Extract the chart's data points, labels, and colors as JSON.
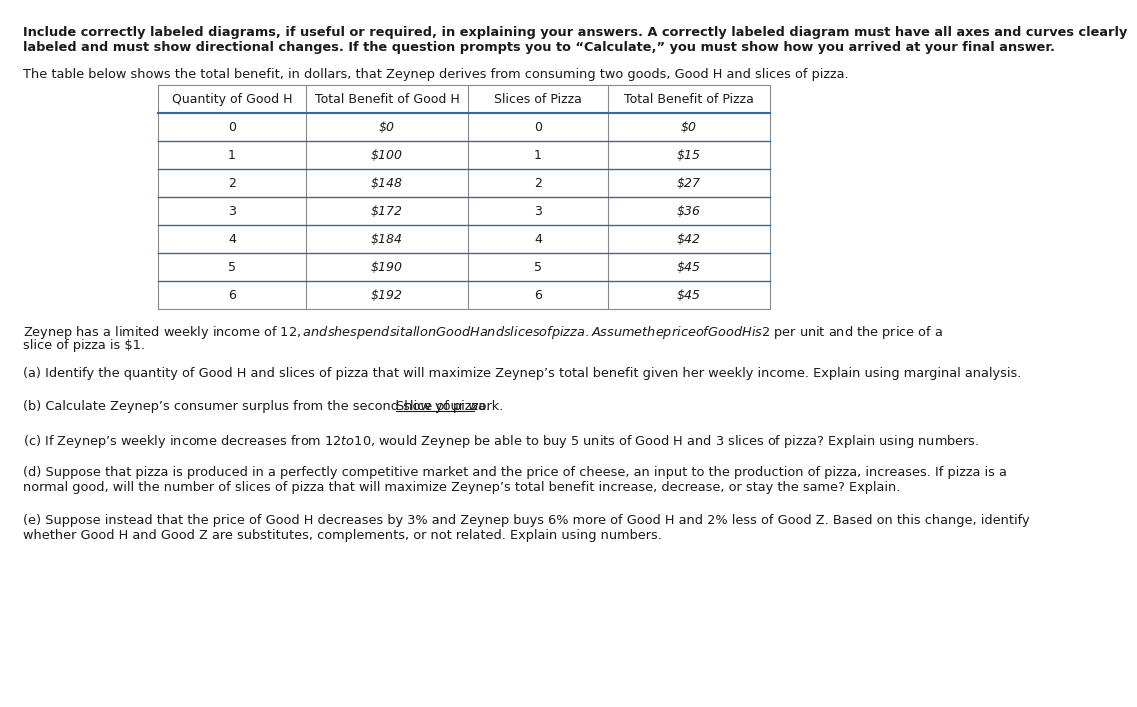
{
  "bg_color": "#ffffff",
  "text_color": "#1a1a1a",
  "table_border_color": "#888888",
  "table_header_line_color": "#2e6da4",
  "table_row_line_color": "#2e6da4",
  "font_family": "DejaVu Sans",
  "header_bold_line1": "Include correctly labeled diagrams, if useful or required, in explaining your answers. A correctly labeled diagram must have all axes and curves clearly",
  "header_bold_line2": "labeled and must show directional changes. If the question prompts you to “Calculate,” you must show how you arrived at your final answer.",
  "intro_text": "The table below shows the total benefit, in dollars, that Zeynep derives from consuming two goods, Good H and slices of pizza.",
  "table_headers": [
    "Quantity of Good H",
    "Total Benefit of Good H",
    "Slices of Pizza",
    "Total Benefit of Pizza"
  ],
  "table_col0": [
    "0",
    "1",
    "2",
    "3",
    "4",
    "5",
    "6"
  ],
  "table_col1": [
    "$0",
    "$100",
    "$148",
    "$172",
    "$184",
    "$190",
    "$192"
  ],
  "table_col2": [
    "0",
    "1",
    "2",
    "3",
    "4",
    "5",
    "6"
  ],
  "table_col3": [
    "$0",
    "$15",
    "$27",
    "$36",
    "$42",
    "$45",
    "$45"
  ],
  "income_line1": "Zeynep has a limited weekly income of $12, and she spends it all on Good H and slices of pizza. Assume the price of Good H is $2 per unit and the price of a",
  "income_line2": "slice of pizza is $1.",
  "qa": "(a) Identify the quantity of Good H and slices of pizza that will maximize Zeynep’s total benefit given her weekly income. Explain using marginal analysis.",
  "qb_part1": "(b) Calculate Zeynep’s consumer surplus from the second slice of pizza. ",
  "qb_part2": "Show your work.",
  "qc": "(c) If Zeynep’s weekly income decreases from $12 to $10, would Zeynep be able to buy 5 units of Good H and 3 slices of pizza? Explain using numbers.",
  "qd_line1": "(d) Suppose that pizza is produced in a perfectly competitive market and the price of cheese, an input to the production of pizza, increases. If pizza is a",
  "qd_line2": "normal good, will the number of slices of pizza that will maximize Zeynep’s total benefit increase, decrease, or stay the same? Explain.",
  "qe_line1": "(e) Suppose instead that the price of Good H decreases by 3% and Zeynep buys 6% more of Good H and 2% less of Good Z. Based on this change, identify",
  "qe_line2": "whether Good H and Good Z are substitutes, complements, or not related. Explain using numbers."
}
